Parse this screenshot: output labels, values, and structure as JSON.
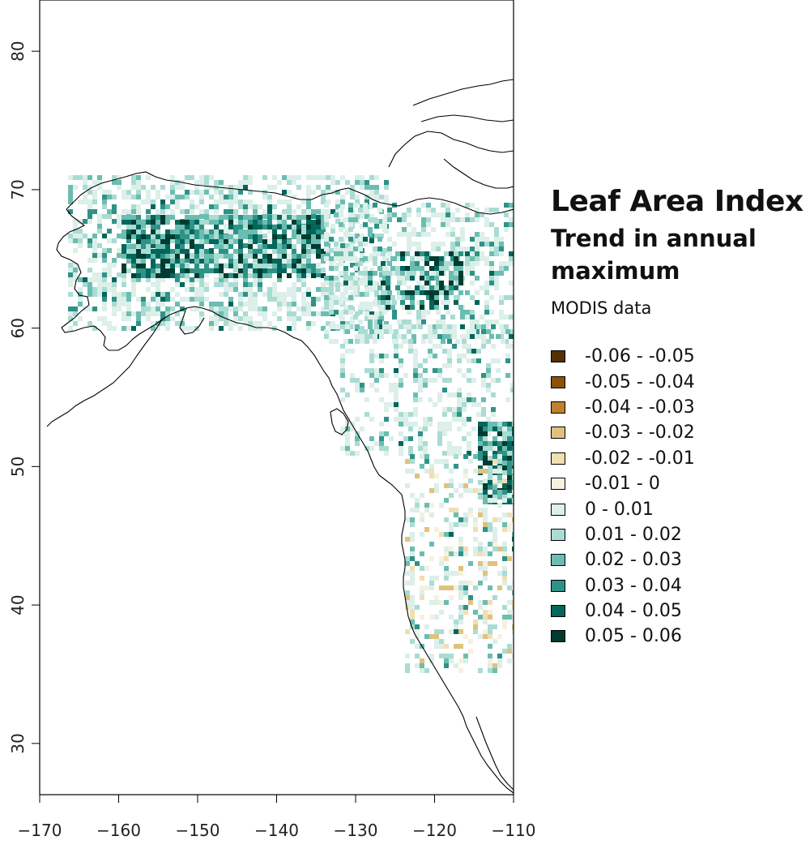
{
  "title": "Leaf Area Index",
  "subtitle": "Trend in annual maximum",
  "source": "MODIS data",
  "map": {
    "x_axis": {
      "ticks": [
        -170,
        -160,
        -150,
        -140,
        -130,
        -120,
        -110
      ],
      "range": [
        -170,
        -110
      ]
    },
    "y_axis": {
      "ticks": [
        30,
        40,
        50,
        60,
        70,
        80
      ],
      "range": [
        26.3,
        83.7
      ]
    }
  },
  "legend": {
    "items": [
      {
        "label": "-0.06 - -0.05",
        "color": "#543005"
      },
      {
        "label": "-0.05 - -0.04",
        "color": "#8c510a"
      },
      {
        "label": "-0.04 - -0.03",
        "color": "#bf812d"
      },
      {
        "label": "-0.03 - -0.02",
        "color": "#dfc27d"
      },
      {
        "label": "-0.02 - -0.01",
        "color": "#f0dfb0"
      },
      {
        "label": "-0.01 - 0",
        "color": "#f6f1df"
      },
      {
        "label": "0 - 0.01",
        "color": "#dcefe9"
      },
      {
        "label": "0.01 - 0.02",
        "color": "#a9dcd3"
      },
      {
        "label": "0.02 - 0.03",
        "color": "#6cbdb1"
      },
      {
        "label": "0.03 - 0.04",
        "color": "#2f9287"
      },
      {
        "label": "0.04 - 0.05",
        "color": "#02665c"
      },
      {
        "label": "0.05 - 0.06",
        "color": "#003c30"
      }
    ]
  }
}
